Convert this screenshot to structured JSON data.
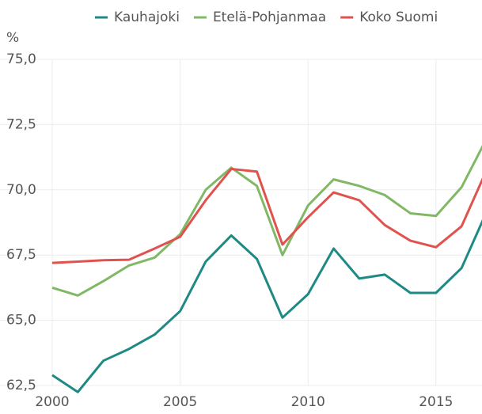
{
  "chart_data": {
    "type": "line",
    "y_axis_label": "%",
    "x": [
      2000,
      2001,
      2002,
      2003,
      2004,
      2005,
      2006,
      2007,
      2008,
      2009,
      2010,
      2011,
      2012,
      2013,
      2014,
      2015,
      2016,
      2017
    ],
    "series": [
      {
        "name": "Kauhajoki",
        "color": "#1f8a84",
        "values": [
          62.9,
          62.25,
          63.45,
          63.9,
          64.45,
          65.35,
          67.25,
          68.25,
          67.35,
          65.1,
          66.0,
          67.75,
          66.6,
          66.75,
          66.05,
          66.05,
          67.0,
          69.2
        ]
      },
      {
        "name": "Etelä-Pohjanmaa",
        "color": "#80b866",
        "values": [
          66.25,
          65.95,
          66.5,
          67.1,
          67.4,
          68.3,
          70.0,
          70.85,
          70.15,
          67.5,
          69.4,
          70.4,
          70.15,
          69.8,
          69.1,
          69.0,
          70.1,
          72.0
        ]
      },
      {
        "name": "Koko Suomi",
        "color": "#e0524d",
        "values": [
          67.2,
          67.25,
          67.3,
          67.32,
          67.75,
          68.2,
          69.6,
          70.8,
          70.7,
          67.9,
          68.95,
          69.9,
          69.6,
          68.65,
          68.05,
          67.8,
          68.6,
          70.8
        ]
      }
    ],
    "xlim": [
      2000,
      2016.8
    ],
    "xticks": [
      2000,
      2005,
      2010,
      2015
    ],
    "ylim": [
      62.5,
      75
    ],
    "yticks": [
      {
        "value": 62.5,
        "label": "62,5"
      },
      {
        "value": 65,
        "label": "65,0"
      },
      {
        "value": 67.5,
        "label": "67,5"
      },
      {
        "value": 70,
        "label": "70,0"
      },
      {
        "value": 72.5,
        "label": "72,5"
      },
      {
        "value": 75,
        "label": "75,0"
      }
    ],
    "grid": true,
    "legend": "top"
  }
}
